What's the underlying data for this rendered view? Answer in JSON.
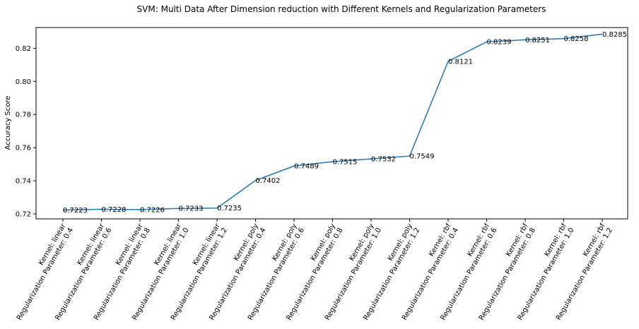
{
  "chart_data": {
    "type": "line",
    "title": "SVM: Multi Data After Dimension reduction with Different Kernels and Regularization Parameters",
    "xlabel": "",
    "ylabel": "Accuracy Score",
    "ylim": [
      0.717,
      0.8325
    ],
    "yticks": [
      "0.72",
      "0.74",
      "0.76",
      "0.78",
      "0.80",
      "0.82"
    ],
    "grid": false,
    "line_color": "#1f77b4",
    "categories": [
      [
        "Kernel: linear",
        "Regularization Parameter: 0.4"
      ],
      [
        "Kernel: linear",
        "Regularization Parameter: 0.6"
      ],
      [
        "Kernel: linear",
        "Regularization Parameter: 0.8"
      ],
      [
        "Kernel: linear",
        "Regularization Parameter: 1.0"
      ],
      [
        "Kernel: linear",
        "Regularization Parameter: 1.2"
      ],
      [
        "Kernel: poly",
        "Regularization Parameter: 0.4"
      ],
      [
        "Kernel: poly",
        "Regularization Parameter: 0.6"
      ],
      [
        "Kernel: poly",
        "Regularization Parameter: 0.8"
      ],
      [
        "Kernel: poly",
        "Regularization Parameter: 1.0"
      ],
      [
        "Kernel: poly",
        "Regularization Parameter: 1.2"
      ],
      [
        "Kernel: rbf",
        "Regularization Parameter: 0.4"
      ],
      [
        "Kernel: rbf",
        "Regularization Parameter: 0.6"
      ],
      [
        "Kernel: rbf",
        "Regularization Parameter: 0.8"
      ],
      [
        "Kernel: rbf",
        "Regularization Parameter: 1.0"
      ],
      [
        "Kernel: rbf",
        "Regularization Parameter: 1.2"
      ]
    ],
    "values": [
      0.7223,
      0.7228,
      0.7226,
      0.7233,
      0.7235,
      0.7402,
      0.7489,
      0.7515,
      0.7532,
      0.7549,
      0.8121,
      0.8239,
      0.8251,
      0.8258,
      0.8285
    ],
    "data_labels": [
      "0.7223",
      "0.7228",
      "0.7226",
      "0.7233",
      "0.7235",
      "0.7402",
      "0.7489",
      "0.7515",
      "0.7532",
      "0.7549",
      "0.8121",
      "0.8239",
      "0.8251",
      "0.8258",
      "0.8285"
    ]
  }
}
